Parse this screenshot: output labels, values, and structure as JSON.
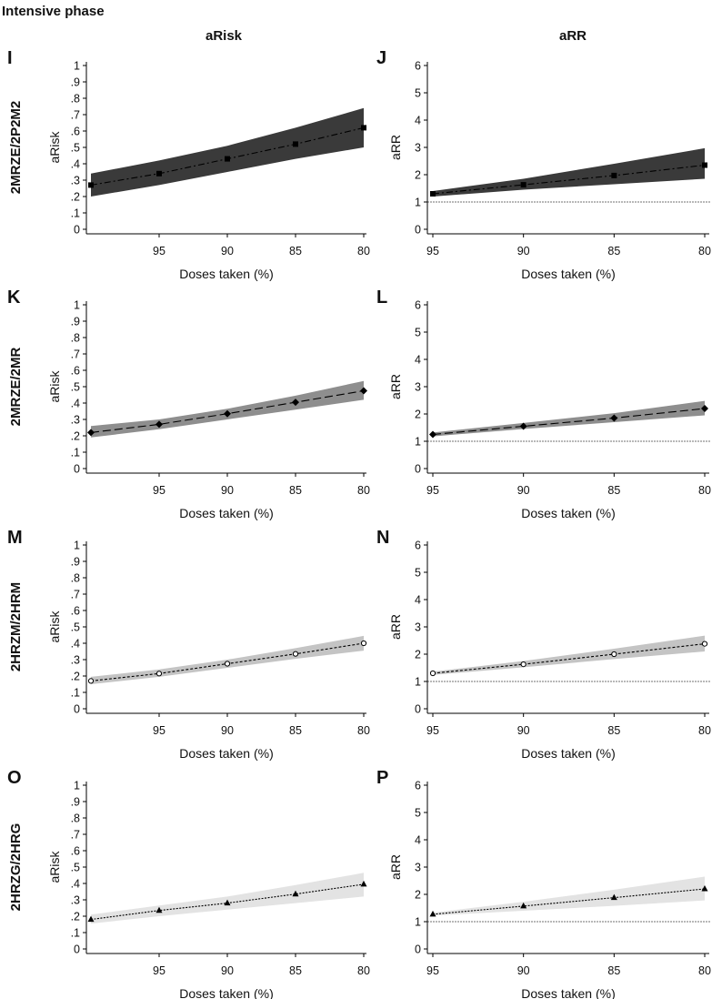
{
  "figure_title": "Intensive phase",
  "column_headers": [
    "aRisk",
    "aRR"
  ],
  "row_labels": [
    "2MRZE/2P2M2",
    "2MRZE/2MR",
    "2HRZM/2HRM",
    "2HRZG/2HRG"
  ],
  "chart_data": [
    {
      "panel": "I",
      "type": "line",
      "row": 0,
      "col": 0,
      "measure": "aRisk",
      "ylabel": "aRisk",
      "xlabel": "Doses taken (%)",
      "x": [
        100,
        95,
        90,
        85,
        80
      ],
      "y": [
        0.27,
        0.34,
        0.43,
        0.52,
        0.62
      ],
      "lower": [
        0.2,
        0.27,
        0.35,
        0.43,
        0.5
      ],
      "upper": [
        0.34,
        0.42,
        0.51,
        0.62,
        0.74
      ],
      "xlim": [
        100,
        80
      ],
      "xticks": [
        "95",
        "90",
        "85",
        "80"
      ],
      "xtick_values": [
        95,
        90,
        85,
        80
      ],
      "ylim": [
        0,
        1
      ],
      "yticks": [
        "0",
        ".1",
        ".2",
        ".3",
        ".4",
        ".5",
        ".6",
        ".7",
        ".8",
        ".9",
        "1"
      ],
      "ytick_values": [
        0,
        0.1,
        0.2,
        0.3,
        0.4,
        0.5,
        0.6,
        0.7,
        0.8,
        0.9,
        1
      ],
      "band_color": "#3a3a3a",
      "line_style": "dash-dot",
      "marker": "square"
    },
    {
      "panel": "J",
      "type": "line",
      "row": 0,
      "col": 1,
      "measure": "aRR",
      "ylabel": "aRR",
      "xlabel": "Doses taken (%)",
      "x": [
        95,
        90,
        85,
        80
      ],
      "y": [
        1.3,
        1.63,
        1.97,
        2.35
      ],
      "lower": [
        1.2,
        1.45,
        1.65,
        1.85
      ],
      "upper": [
        1.4,
        1.85,
        2.4,
        2.97
      ],
      "xlim": [
        95,
        80
      ],
      "xticks": [
        "95",
        "90",
        "85",
        "80"
      ],
      "xtick_values": [
        95,
        90,
        85,
        80
      ],
      "ylim": [
        0,
        6
      ],
      "yticks": [
        "0",
        "1",
        "2",
        "3",
        "4",
        "5",
        "6"
      ],
      "ytick_values": [
        0,
        1,
        2,
        3,
        4,
        5,
        6
      ],
      "reference_line": 1,
      "band_color": "#3a3a3a",
      "line_style": "dash-dot",
      "marker": "square"
    },
    {
      "panel": "K",
      "type": "line",
      "row": 1,
      "col": 0,
      "measure": "aRisk",
      "ylabel": "aRisk",
      "xlabel": "Doses taken (%)",
      "x": [
        100,
        95,
        90,
        85,
        80
      ],
      "y": [
        0.22,
        0.27,
        0.335,
        0.405,
        0.475
      ],
      "lower": [
        0.19,
        0.24,
        0.3,
        0.36,
        0.42
      ],
      "upper": [
        0.26,
        0.3,
        0.365,
        0.445,
        0.535
      ],
      "xlim": [
        100,
        80
      ],
      "xticks": [
        "95",
        "90",
        "85",
        "80"
      ],
      "xtick_values": [
        95,
        90,
        85,
        80
      ],
      "ylim": [
        0,
        1
      ],
      "yticks": [
        "0",
        ".1",
        ".2",
        ".3",
        ".4",
        ".5",
        ".6",
        ".7",
        ".8",
        ".9",
        "1"
      ],
      "ytick_values": [
        0,
        0.1,
        0.2,
        0.3,
        0.4,
        0.5,
        0.6,
        0.7,
        0.8,
        0.9,
        1
      ],
      "band_color": "#8e8e8e",
      "line_style": "long-dash",
      "marker": "diamond"
    },
    {
      "panel": "L",
      "type": "line",
      "row": 1,
      "col": 1,
      "measure": "aRR",
      "ylabel": "aRR",
      "xlabel": "Doses taken (%)",
      "x": [
        95,
        90,
        85,
        80
      ],
      "y": [
        1.25,
        1.55,
        1.85,
        2.2
      ],
      "lower": [
        1.18,
        1.45,
        1.7,
        1.95
      ],
      "upper": [
        1.32,
        1.67,
        2.03,
        2.48
      ],
      "xlim": [
        95,
        80
      ],
      "xticks": [
        "95",
        "90",
        "85",
        "80"
      ],
      "xtick_values": [
        95,
        90,
        85,
        80
      ],
      "ylim": [
        0,
        6
      ],
      "yticks": [
        "0",
        "1",
        "2",
        "3",
        "4",
        "5",
        "6"
      ],
      "ytick_values": [
        0,
        1,
        2,
        3,
        4,
        5,
        6
      ],
      "reference_line": 1,
      "band_color": "#8e8e8e",
      "line_style": "long-dash",
      "marker": "diamond"
    },
    {
      "panel": "M",
      "type": "line",
      "row": 2,
      "col": 0,
      "measure": "aRisk",
      "ylabel": "aRisk",
      "xlabel": "Doses taken (%)",
      "x": [
        100,
        95,
        90,
        85,
        80
      ],
      "y": [
        0.17,
        0.215,
        0.275,
        0.335,
        0.4
      ],
      "lower": [
        0.15,
        0.195,
        0.25,
        0.305,
        0.355
      ],
      "upper": [
        0.195,
        0.24,
        0.3,
        0.37,
        0.445
      ],
      "xlim": [
        100,
        80
      ],
      "xticks": [
        "95",
        "90",
        "85",
        "80"
      ],
      "xtick_values": [
        95,
        90,
        85,
        80
      ],
      "ylim": [
        0,
        1
      ],
      "yticks": [
        "0",
        ".1",
        ".2",
        ".3",
        ".4",
        ".5",
        ".6",
        ".7",
        ".8",
        ".9",
        "1"
      ],
      "ytick_values": [
        0,
        0.1,
        0.2,
        0.3,
        0.4,
        0.5,
        0.6,
        0.7,
        0.8,
        0.9,
        1
      ],
      "band_color": "#c4c4c4",
      "line_style": "short-dash",
      "marker": "open-circle"
    },
    {
      "panel": "N",
      "type": "line",
      "row": 2,
      "col": 1,
      "measure": "aRR",
      "ylabel": "aRR",
      "xlabel": "Doses taken (%)",
      "x": [
        95,
        90,
        85,
        80
      ],
      "y": [
        1.3,
        1.63,
        2.0,
        2.38
      ],
      "lower": [
        1.24,
        1.52,
        1.82,
        2.1
      ],
      "upper": [
        1.36,
        1.75,
        2.2,
        2.68
      ],
      "xlim": [
        95,
        80
      ],
      "xticks": [
        "95",
        "90",
        "85",
        "80"
      ],
      "xtick_values": [
        95,
        90,
        85,
        80
      ],
      "ylim": [
        0,
        6
      ],
      "yticks": [
        "0",
        "1",
        "2",
        "3",
        "4",
        "5",
        "6"
      ],
      "ytick_values": [
        0,
        1,
        2,
        3,
        4,
        5,
        6
      ],
      "reference_line": 1,
      "band_color": "#c4c4c4",
      "line_style": "short-dash",
      "marker": "open-circle"
    },
    {
      "panel": "O",
      "type": "line",
      "row": 3,
      "col": 0,
      "measure": "aRisk",
      "ylabel": "aRisk",
      "xlabel": "Doses taken (%)",
      "x": [
        100,
        95,
        90,
        85,
        80
      ],
      "y": [
        0.18,
        0.235,
        0.28,
        0.335,
        0.395
      ],
      "lower": [
        0.155,
        0.2,
        0.24,
        0.28,
        0.32
      ],
      "upper": [
        0.21,
        0.265,
        0.32,
        0.39,
        0.465
      ],
      "xlim": [
        100,
        80
      ],
      "xticks": [
        "95",
        "90",
        "85",
        "80"
      ],
      "xtick_values": [
        95,
        90,
        85,
        80
      ],
      "ylim": [
        0,
        1
      ],
      "yticks": [
        "0",
        ".1",
        ".2",
        ".3",
        ".4",
        ".5",
        ".6",
        ".7",
        ".8",
        ".9",
        "1"
      ],
      "ytick_values": [
        0,
        0.1,
        0.2,
        0.3,
        0.4,
        0.5,
        0.6,
        0.7,
        0.8,
        0.9,
        1
      ],
      "band_color": "#e3e3e3",
      "line_style": "fine-dash",
      "marker": "triangle"
    },
    {
      "panel": "P",
      "type": "line",
      "row": 3,
      "col": 1,
      "measure": "aRR",
      "ylabel": "aRR",
      "xlabel": "Doses taken (%)",
      "x": [
        95,
        90,
        85,
        80
      ],
      "y": [
        1.27,
        1.57,
        1.88,
        2.2
      ],
      "lower": [
        1.22,
        1.4,
        1.58,
        1.78
      ],
      "upper": [
        1.33,
        1.73,
        2.17,
        2.65
      ],
      "xlim": [
        95,
        80
      ],
      "xticks": [
        "95",
        "90",
        "85",
        "80"
      ],
      "xtick_values": [
        95,
        90,
        85,
        80
      ],
      "ylim": [
        0,
        6
      ],
      "yticks": [
        "0",
        "1",
        "2",
        "3",
        "4",
        "5",
        "6"
      ],
      "ytick_values": [
        0,
        1,
        2,
        3,
        4,
        5,
        6
      ],
      "reference_line": 1,
      "band_color": "#e3e3e3",
      "line_style": "fine-dash",
      "marker": "triangle"
    }
  ]
}
